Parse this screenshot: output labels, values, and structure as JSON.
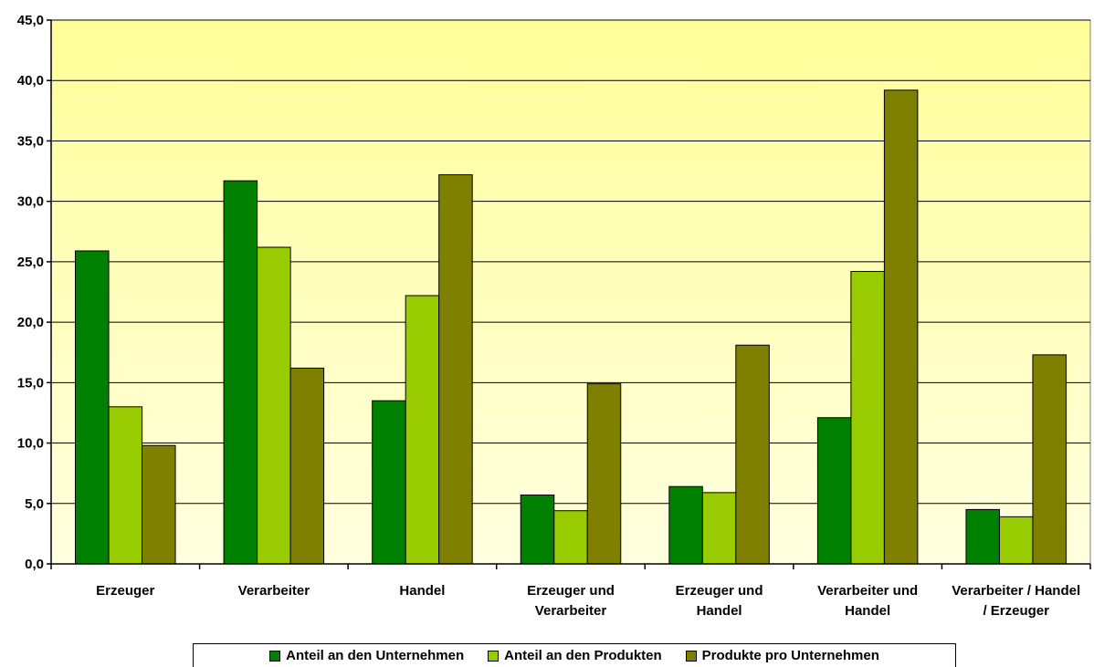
{
  "chart_data": {
    "type": "bar",
    "categories": [
      [
        "Erzeuger"
      ],
      [
        "Verarbeiter"
      ],
      [
        "Handel"
      ],
      [
        "Erzeuger und",
        "Verarbeiter"
      ],
      [
        "Erzeuger und",
        "Handel"
      ],
      [
        "Verarbeiter und",
        "Handel"
      ],
      [
        "Verarbeiter / Handel",
        "/ Erzeuger"
      ]
    ],
    "series": [
      {
        "name": "Anteil an den Unternehmen",
        "color": "#008000",
        "values": [
          25.9,
          31.7,
          13.5,
          5.7,
          6.4,
          12.1,
          4.5
        ]
      },
      {
        "name": "Anteil an den Produkten",
        "color": "#99CC00",
        "values": [
          13.0,
          26.2,
          22.2,
          4.4,
          5.9,
          24.2,
          3.9
        ]
      },
      {
        "name": "Produkte pro Unternehmen",
        "color": "#808000",
        "values": [
          9.8,
          16.2,
          32.2,
          14.9,
          18.1,
          39.2,
          17.3
        ]
      }
    ],
    "ylim": [
      0,
      45
    ],
    "yticks": [
      "0,0",
      "5,0",
      "10,0",
      "15,0",
      "20,0",
      "25,0",
      "30,0",
      "35,0",
      "40,0",
      "45,0"
    ],
    "grid": true,
    "legend_position": "bottom",
    "plot_background": [
      "#FFFF99",
      "#FFFFE0"
    ]
  }
}
